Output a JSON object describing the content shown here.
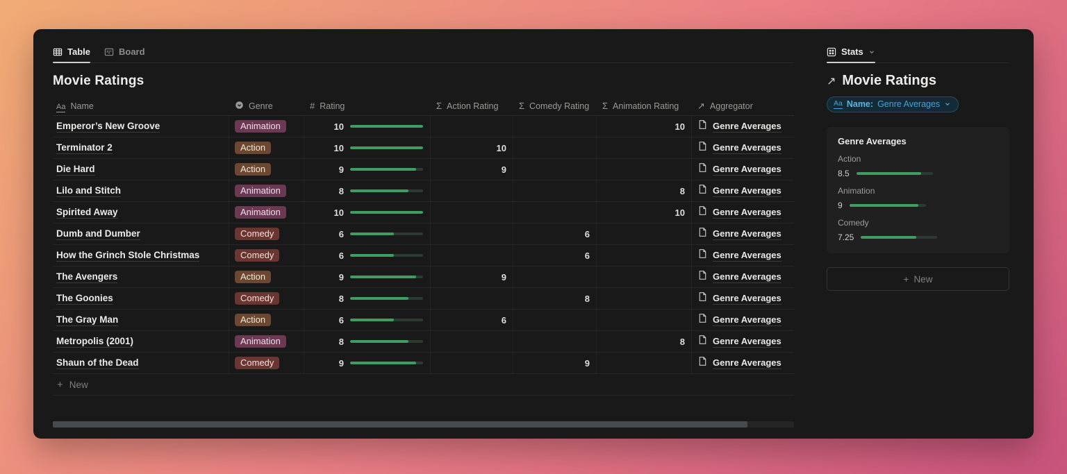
{
  "theme": {
    "bg_gradient": [
      "#f0ab74",
      "#ea7e85",
      "#c8537c"
    ],
    "panel_bg": "#191919",
    "card_bg": "#202020",
    "green_fill": "#3f9d62",
    "green_track": "#2c3b32",
    "accent_blue": "#47a2d3",
    "genre_colors": {
      "Animation": {
        "bg": "#6b3953",
        "text": "#f3dde8"
      },
      "Action": {
        "bg": "#6c4732",
        "text": "#f7e7d6"
      },
      "Comedy": {
        "bg": "#6b3631",
        "text": "#f6ddd8"
      }
    }
  },
  "left": {
    "tabs": [
      {
        "label": "Table",
        "icon": "table-view-icon",
        "active": true
      },
      {
        "label": "Board",
        "icon": "board-view-icon",
        "active": false
      }
    ],
    "title": "Movie Ratings",
    "columns": [
      {
        "label": "Name",
        "icon": "text-field-icon"
      },
      {
        "label": "Genre",
        "icon": "select-field-icon"
      },
      {
        "label": "Rating",
        "icon": "number-field-icon"
      },
      {
        "label": "Action Rating",
        "icon": "sum-icon"
      },
      {
        "label": "Comedy Rating",
        "icon": "sum-icon"
      },
      {
        "label": "Animation Rating",
        "icon": "sum-icon"
      },
      {
        "label": "Aggregator",
        "icon": "relation-icon"
      }
    ],
    "rating_max": 10,
    "rows": [
      {
        "name": "Emperor’s New Groove",
        "genre": "Animation",
        "rating": 10,
        "action": "",
        "comedy": "",
        "animation": "10",
        "aggregator": "Genre Averages"
      },
      {
        "name": "Terminator 2",
        "genre": "Action",
        "rating": 10,
        "action": "10",
        "comedy": "",
        "animation": "",
        "aggregator": "Genre Averages"
      },
      {
        "name": "Die Hard",
        "genre": "Action",
        "rating": 9,
        "action": "9",
        "comedy": "",
        "animation": "",
        "aggregator": "Genre Averages"
      },
      {
        "name": "Lilo and Stitch",
        "genre": "Animation",
        "rating": 8,
        "action": "",
        "comedy": "",
        "animation": "8",
        "aggregator": "Genre Averages"
      },
      {
        "name": "Spirited Away",
        "genre": "Animation",
        "rating": 10,
        "action": "",
        "comedy": "",
        "animation": "10",
        "aggregator": "Genre Averages"
      },
      {
        "name": "Dumb and Dumber",
        "genre": "Comedy",
        "rating": 6,
        "action": "",
        "comedy": "6",
        "animation": "",
        "aggregator": "Genre Averages"
      },
      {
        "name": "How the Grinch Stole Christmas",
        "genre": "Comedy",
        "rating": 6,
        "action": "",
        "comedy": "6",
        "animation": "",
        "aggregator": "Genre Averages"
      },
      {
        "name": "The Avengers",
        "genre": "Action",
        "rating": 9,
        "action": "9",
        "comedy": "",
        "animation": "",
        "aggregator": "Genre Averages"
      },
      {
        "name": "The Goonies",
        "genre": "Comedy",
        "rating": 8,
        "action": "",
        "comedy": "8",
        "animation": "",
        "aggregator": "Genre Averages"
      },
      {
        "name": "The Gray Man",
        "genre": "Action",
        "rating": 6,
        "action": "6",
        "comedy": "",
        "animation": "",
        "aggregator": "Genre Averages"
      },
      {
        "name": "Metropolis (2001)",
        "genre": "Animation",
        "rating": 8,
        "action": "",
        "comedy": "",
        "animation": "8",
        "aggregator": "Genre Averages"
      },
      {
        "name": "Shaun of the Dead",
        "genre": "Comedy",
        "rating": 9,
        "action": "",
        "comedy": "9",
        "animation": "",
        "aggregator": "Genre Averages"
      }
    ],
    "new_row_label": "New"
  },
  "right": {
    "tab_label": "Stats",
    "title": "Movie Ratings",
    "filter_pill": {
      "field_icon": "Aa",
      "field": "Name:",
      "value": "Genre Averages"
    },
    "card": {
      "title": "Genre Averages",
      "stats": [
        {
          "label": "Action",
          "value": "8.5",
          "pct": 85
        },
        {
          "label": "Animation",
          "value": "9",
          "pct": 90
        },
        {
          "label": "Comedy",
          "value": "7.25",
          "pct": 72.5
        }
      ]
    },
    "new_button_label": "New"
  }
}
